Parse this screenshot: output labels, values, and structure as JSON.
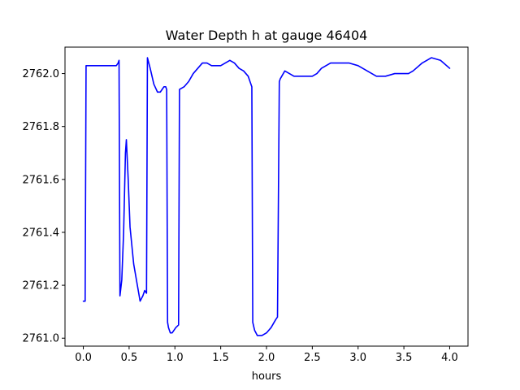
{
  "chart_data": {
    "type": "line",
    "title": "Water Depth h at gauge 46404",
    "xlabel": "hours",
    "ylabel": "",
    "xlim": [
      -0.2,
      4.2
    ],
    "ylim": [
      2760.97,
      2762.1
    ],
    "xticks": [
      0.0,
      0.5,
      1.0,
      1.5,
      2.0,
      2.5,
      3.0,
      3.5,
      4.0
    ],
    "xtick_labels": [
      "0.0",
      "0.5",
      "1.0",
      "1.5",
      "2.0",
      "2.5",
      "3.0",
      "3.5",
      "4.0"
    ],
    "yticks": [
      2761.0,
      2761.2,
      2761.4,
      2761.6,
      2761.8,
      2762.0
    ],
    "ytick_labels": [
      "2761.0",
      "2761.2",
      "2761.4",
      "2761.6",
      "2761.8",
      "2762.0"
    ],
    "grid": false,
    "legend": "none",
    "series": [
      {
        "color": "#0000ff",
        "x": [
          0.0,
          0.02,
          0.03,
          0.2,
          0.33,
          0.36,
          0.38,
          0.39,
          0.4,
          0.42,
          0.44,
          0.46,
          0.47,
          0.49,
          0.51,
          0.55,
          0.59,
          0.62,
          0.65,
          0.67,
          0.69,
          0.7,
          0.73,
          0.77,
          0.81,
          0.84,
          0.86,
          0.88,
          0.9,
          0.91,
          0.92,
          0.93,
          0.95,
          0.97,
          0.99,
          1.01,
          1.04,
          1.05,
          1.1,
          1.15,
          1.2,
          1.25,
          1.3,
          1.35,
          1.4,
          1.45,
          1.5,
          1.55,
          1.6,
          1.65,
          1.7,
          1.75,
          1.8,
          1.82,
          1.84,
          1.85,
          1.87,
          1.9,
          1.95,
          2.0,
          2.05,
          2.1,
          2.12,
          2.14,
          2.15,
          2.2,
          2.25,
          2.3,
          2.35,
          2.4,
          2.45,
          2.5,
          2.55,
          2.6,
          2.65,
          2.7,
          2.8,
          2.9,
          3.0,
          3.1,
          3.2,
          3.3,
          3.4,
          3.45,
          3.5,
          3.55,
          3.6,
          3.7,
          3.8,
          3.9,
          4.0
        ],
        "y": [
          2761.14,
          2761.14,
          2762.03,
          2762.03,
          2762.03,
          2762.03,
          2762.04,
          2762.05,
          2761.16,
          2761.22,
          2761.4,
          2761.7,
          2761.75,
          2761.6,
          2761.42,
          2761.28,
          2761.2,
          2761.14,
          2761.16,
          2761.18,
          2761.17,
          2762.06,
          2762.02,
          2761.96,
          2761.93,
          2761.93,
          2761.94,
          2761.95,
          2761.95,
          2761.94,
          2761.06,
          2761.04,
          2761.02,
          2761.02,
          2761.03,
          2761.04,
          2761.05,
          2761.94,
          2761.95,
          2761.97,
          2762.0,
          2762.02,
          2762.04,
          2762.04,
          2762.03,
          2762.03,
          2762.03,
          2762.04,
          2762.05,
          2762.04,
          2762.02,
          2762.01,
          2761.99,
          2761.97,
          2761.95,
          2761.06,
          2761.03,
          2761.01,
          2761.01,
          2761.02,
          2761.04,
          2761.07,
          2761.08,
          2761.97,
          2761.98,
          2762.01,
          2762.0,
          2761.99,
          2761.99,
          2761.99,
          2761.99,
          2761.99,
          2762.0,
          2762.02,
          2762.03,
          2762.04,
          2762.04,
          2762.04,
          2762.03,
          2762.01,
          2761.99,
          2761.99,
          2762.0,
          2762.0,
          2762.0,
          2762.0,
          2762.01,
          2762.04,
          2762.06,
          2762.05,
          2762.02
        ]
      }
    ]
  }
}
